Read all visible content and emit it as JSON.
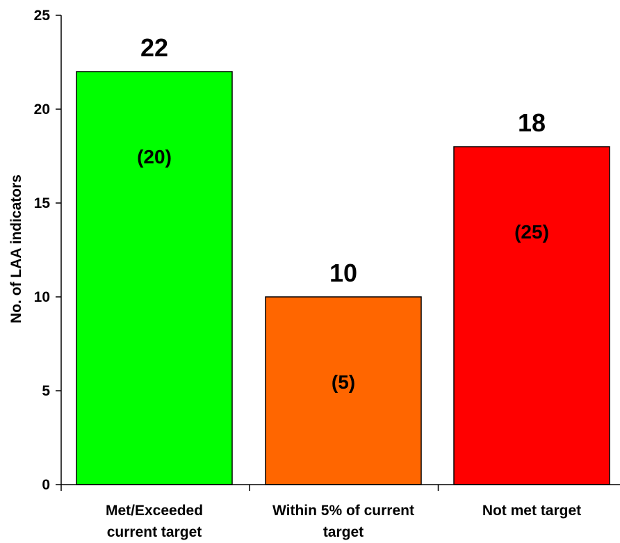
{
  "chart_data": {
    "type": "bar",
    "title": "",
    "xlabel": "",
    "ylabel": "No. of LAA indicators",
    "ylim": [
      0,
      25
    ],
    "yticks": [
      0,
      5,
      10,
      15,
      20,
      25
    ],
    "grid": false,
    "categories": [
      [
        "Met/Exceeded",
        "current target"
      ],
      [
        "Within 5% of current",
        "target"
      ],
      [
        "Not met target"
      ]
    ],
    "values": [
      22,
      10,
      18
    ],
    "value_labels": [
      "22",
      "10",
      "18"
    ],
    "inner_labels": [
      "(20)",
      "(5)",
      "(25)"
    ],
    "colors": [
      "#00FF00",
      "#FF6600",
      "#FF0000"
    ]
  }
}
